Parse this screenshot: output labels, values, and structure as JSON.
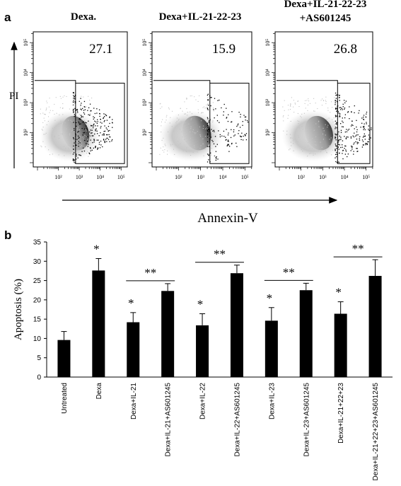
{
  "panel_a": {
    "letter": "a",
    "xlabel": "Annexin-V",
    "ylabel": "PI",
    "plots": [
      {
        "title": [
          "Dexa."
        ],
        "percent": "27.1"
      },
      {
        "title": [
          "Dexa+IL-21-22-23"
        ],
        "percent": "15.9"
      },
      {
        "title": [
          "Dexa+IL-21-22-23",
          "+AS601245"
        ],
        "percent": "26.8"
      }
    ],
    "x_tick_labels": [
      "10²",
      "10³",
      "10⁴",
      "10⁵"
    ],
    "y_tick_labels": [
      "10²",
      "10³",
      "10⁴",
      "10⁵"
    ]
  },
  "panel_b": {
    "letter": "b",
    "significance": {
      "single": "*",
      "double": "**"
    }
  },
  "chart_data": [
    {
      "type": "scatter",
      "description_ref": "flow cytometry Annexin-V vs PI density plots",
      "xlabel": "Annexin-V",
      "ylabel": "PI",
      "axis_scale": "log",
      "xlim": [
        10,
        316228
      ],
      "ylim": [
        10,
        316228
      ],
      "gate_percent": [
        27.1,
        15.9,
        26.8
      ],
      "titles": [
        "Dexa.",
        "Dexa+IL-21-22-23",
        "Dexa+IL-21-22-23 +AS601245"
      ]
    },
    {
      "type": "bar",
      "ylabel": "Apoptosis (%)",
      "ylim": [
        0,
        35
      ],
      "yticks": [
        0,
        5,
        10,
        15,
        20,
        25,
        30,
        35
      ],
      "categories": [
        "Untreated",
        "Dexa",
        "Dexa+IL-21",
        "Dexa+IL-21+AS601245",
        "Dexa+IL-22",
        "Dexa+IL-22+AS601245",
        "Dexa+IL-23",
        "Dexa+IL-23+AS601245",
        "Dexa+IL-21+22+23",
        "Dexa+IL-21+22+23+AS601245"
      ],
      "values": [
        9.6,
        27.6,
        14.2,
        22.3,
        13.4,
        26.9,
        14.6,
        22.5,
        16.4,
        26.2
      ],
      "errors": [
        2.2,
        3.1,
        2.5,
        1.9,
        3.0,
        2.1,
        3.4,
        1.8,
        3.1,
        4.2
      ],
      "single_star": [
        false,
        true,
        true,
        false,
        true,
        false,
        true,
        false,
        true,
        false
      ],
      "double_star_pairs": [
        [
          2,
          3
        ],
        [
          4,
          5
        ],
        [
          6,
          7
        ],
        [
          8,
          9
        ]
      ],
      "bar_color": "#000000",
      "grid": false
    }
  ]
}
